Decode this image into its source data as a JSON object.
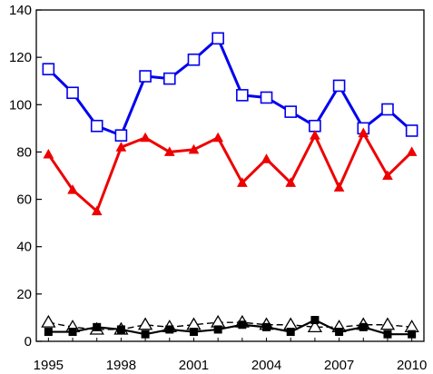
{
  "chart_data": {
    "type": "line",
    "x": [
      1995,
      1996,
      1997,
      1998,
      1999,
      2000,
      2001,
      2002,
      2003,
      2004,
      2005,
      2006,
      2007,
      2008,
      2009,
      2010
    ],
    "xlim": [
      1994.5,
      2010.5
    ],
    "xticks": [
      1995,
      1998,
      2001,
      2004,
      2007,
      2010
    ],
    "ylim": [
      0,
      140
    ],
    "yticks": [
      0,
      20,
      40,
      60,
      80,
      100,
      120,
      140
    ],
    "title": "",
    "xlabel": "",
    "ylabel": "",
    "legend": "none",
    "grid": false,
    "series": [
      {
        "marker": "open-square",
        "color": "#0000ee",
        "line_style": "solid",
        "values": [
          115,
          105,
          91,
          87,
          112,
          111,
          119,
          128,
          104,
          103,
          97,
          91,
          108,
          90,
          98,
          89
        ]
      },
      {
        "marker": "filled-triangle",
        "color": "#ee0000",
        "line_style": "solid",
        "values": [
          79,
          64,
          55,
          82,
          86,
          80,
          81,
          86,
          67,
          77,
          67,
          87,
          65,
          88,
          70,
          80
        ]
      },
      {
        "marker": "open-triangle",
        "color": "#000000",
        "line_style": "dashed",
        "values": [
          8,
          6,
          5,
          5,
          7,
          6,
          7,
          8,
          8,
          7,
          7,
          6,
          6,
          7,
          7,
          6
        ]
      },
      {
        "marker": "filled-square",
        "color": "#000000",
        "line_style": "solid",
        "values": [
          4,
          4,
          6,
          5,
          3,
          5,
          4,
          5,
          7,
          6,
          4,
          9,
          4,
          6,
          3,
          3
        ]
      }
    ]
  }
}
